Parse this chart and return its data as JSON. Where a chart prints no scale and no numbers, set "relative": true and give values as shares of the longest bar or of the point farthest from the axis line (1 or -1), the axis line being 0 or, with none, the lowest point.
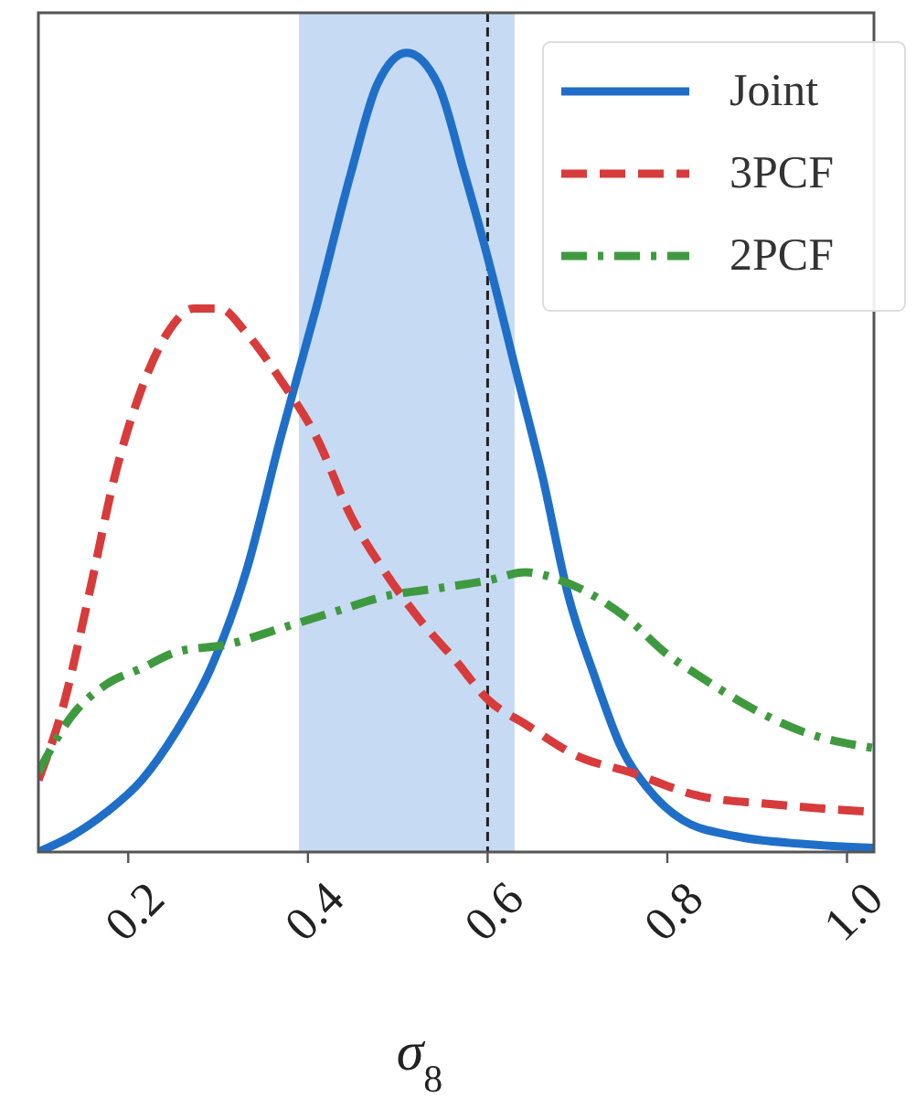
{
  "chart_data": {
    "type": "line",
    "xlabel": "σ$_{8}$",
    "relative": true,
    "xlim": [
      0.1,
      1.03
    ],
    "xticks": [
      {
        "value": 0.2,
        "label": "0.2"
      },
      {
        "value": 0.4,
        "label": "0.4"
      },
      {
        "value": 0.6,
        "label": "0.6"
      },
      {
        "value": 0.8,
        "label": "0.8"
      },
      {
        "value": 1.0,
        "label": "1.0"
      }
    ],
    "grid": false,
    "legend": "top right",
    "series": [
      {
        "name": "Joint",
        "color": "#1f6fc8",
        "line_style": "solid",
        "x": [
          0.1,
          0.137,
          0.176,
          0.215,
          0.253,
          0.292,
          0.331,
          0.37,
          0.409,
          0.448,
          0.477,
          0.51,
          0.545,
          0.574,
          0.601,
          0.632,
          0.661,
          0.69,
          0.719,
          0.749,
          0.778,
          0.817,
          0.875,
          0.952,
          1.03
        ],
        "values": [
          0,
          0.02,
          0.05,
          0.09,
          0.15,
          0.23,
          0.35,
          0.52,
          0.68,
          0.85,
          0.96,
          1,
          0.96,
          0.85,
          0.74,
          0.6,
          0.47,
          0.32,
          0.22,
          0.13,
          0.08,
          0.04,
          0.02,
          0.01,
          0.005
        ]
      },
      {
        "name": "3PCF",
        "color": "#d83b3b",
        "line_style": "dashed",
        "x": [
          0.1,
          0.127,
          0.156,
          0.185,
          0.215,
          0.244,
          0.273,
          0.302,
          0.331,
          0.37,
          0.409,
          0.448,
          0.486,
          0.525,
          0.564,
          0.601,
          0.642,
          0.7,
          0.758,
          0.836,
          0.914,
          1.03
        ],
        "values": [
          0.09,
          0.18,
          0.32,
          0.47,
          0.58,
          0.65,
          0.68,
          0.68,
          0.65,
          0.59,
          0.52,
          0.42,
          0.35,
          0.29,
          0.24,
          0.19,
          0.16,
          0.12,
          0.1,
          0.07,
          0.06,
          0.05
        ]
      },
      {
        "name": "2PCF",
        "color": "#3f9a3f",
        "line_style": "dashdot",
        "x": [
          0.1,
          0.137,
          0.176,
          0.215,
          0.253,
          0.312,
          0.37,
          0.428,
          0.486,
          0.545,
          0.601,
          0.642,
          0.681,
          0.719,
          0.758,
          0.797,
          0.836,
          0.894,
          0.952,
          1.03
        ],
        "values": [
          0.1,
          0.17,
          0.21,
          0.23,
          0.25,
          0.26,
          0.28,
          0.3,
          0.32,
          0.33,
          0.34,
          0.35,
          0.34,
          0.32,
          0.29,
          0.25,
          0.22,
          0.18,
          0.15,
          0.13
        ]
      }
    ],
    "bands": [
      {
        "axis": "x",
        "from": 0.39,
        "to": 0.63,
        "color": "#c6daf3"
      }
    ],
    "ref_lines": [
      {
        "axis": "x",
        "value": 0.6,
        "color": "#222222",
        "line_style": "dashed"
      }
    ]
  }
}
